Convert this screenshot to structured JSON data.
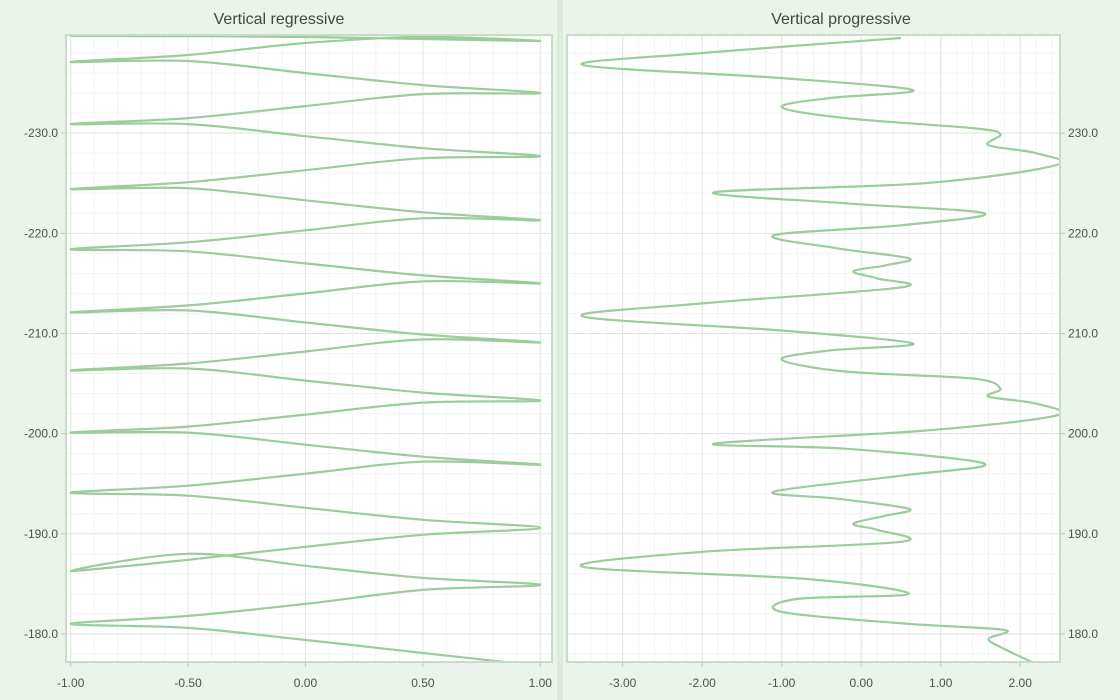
{
  "chart_data": [
    {
      "type": "line",
      "title": "Vertical regressive",
      "orientation": "vertical",
      "y_direction": "regressive",
      "y_axis_side": "left",
      "xlim": [
        -1.02,
        1.05
      ],
      "ylim": [
        -177.2,
        -239.8
      ],
      "x_ticks": [
        -1.0,
        -0.5,
        0.0,
        0.5,
        1.0
      ],
      "x_tick_labels": [
        "-1.00",
        "-0.50",
        "0.00",
        "0.50",
        "1.00"
      ],
      "y_ticks": [
        -180,
        -190,
        -200,
        -210,
        -220,
        -230
      ],
      "y_tick_labels": [
        "-180.0",
        "-190.0",
        "-200.0",
        "-210.0",
        "-220.0",
        "-230.0"
      ],
      "grid": true,
      "line_color": "#9ccc9c",
      "series": [
        {
          "x": [
            0.925,
            0.5,
            0.0,
            -0.5,
            -1.0,
            -0.5,
            0.0,
            0.5,
            1.0,
            0.5,
            0.0,
            -0.5,
            -1.0,
            -0.5,
            0.0,
            0.5,
            1.0,
            0.5,
            0.0,
            -0.5,
            -1.0,
            -0.5,
            0.0,
            0.5,
            1.0,
            0.5,
            0.0,
            -0.5,
            -1.0,
            -0.5,
            0.0,
            0.5,
            1.0,
            0.5,
            0.0,
            -0.5,
            -1.0,
            -0.5,
            0.0,
            0.5,
            1.0,
            0.5,
            0.0,
            -0.5,
            -1.0,
            -0.5,
            0.0,
            0.5,
            1.0,
            0.5,
            0.0,
            -0.5,
            -1.0,
            -0.5,
            0.0,
            0.5,
            1.0,
            0.5,
            0.0,
            -0.5,
            -1.0,
            -0.5,
            0.0,
            0.5,
            1.0,
            0.5,
            0.0,
            -0.5,
            -1.0,
            -0.5,
            0.0,
            0.5,
            1.0,
            0.5,
            0.0,
            -0.5,
            -1.0,
            -0.5,
            0.0,
            0.5,
            1.0,
            0.5,
            0.0,
            -0.5,
            -1.0,
            -0.5,
            0.0,
            0.5,
            1.0,
            0.5,
            0.0,
            -0.5,
            -1.0,
            -0.5,
            0.0,
            0.5,
            1.0,
            0.5,
            0.9
          ],
          "y": [
            -177.0,
            -178.1,
            -179.4,
            -180.6,
            -181.0,
            -181.8,
            -183.0,
            -184.4,
            -184.9,
            -185.6,
            -186.8,
            -188.0,
            -186.3,
            -187.4,
            -188.7,
            -189.9,
            -190.6,
            -191.4,
            -192.6,
            -193.8,
            -194.1,
            -194.8,
            -196.0,
            -197.2,
            -196.9,
            -197.7,
            -198.9,
            -200.1,
            -200.1,
            -200.7,
            -201.9,
            -203.1,
            -203.3,
            -204.1,
            -205.3,
            -206.5,
            -206.3,
            -207.0,
            -208.2,
            -209.4,
            -209.1,
            -209.9,
            -211.1,
            -212.3,
            -212.1,
            -212.8,
            -214.0,
            -215.2,
            -215.0,
            -215.8,
            -217.0,
            -218.2,
            -218.4,
            -219.1,
            -220.3,
            -221.5,
            -221.3,
            -222.1,
            -223.3,
            -224.5,
            -224.4,
            -225.1,
            -226.3,
            -227.5,
            -227.7,
            -228.5,
            -229.7,
            -230.9,
            -230.9,
            -231.5,
            -232.7,
            -233.9,
            -234.0,
            -234.8,
            -236.0,
            -237.2,
            -237.1,
            -237.8,
            -239.0,
            -239.6,
            -239.2,
            -239.4,
            -239.6,
            -239.7,
            -239.7,
            -239.7,
            -239.8,
            -239.8,
            -239.8,
            -239.8,
            -239.8,
            -239.8,
            -239.8,
            -239.8,
            -239.8,
            -239.8,
            -239.8,
            -239.8,
            -239.8
          ]
        }
      ]
    },
    {
      "type": "line",
      "title": "Vertical progressive",
      "orientation": "vertical",
      "y_direction": "progressive",
      "y_axis_side": "right",
      "xlim": [
        -3.7,
        2.5
      ],
      "ylim": [
        177.2,
        239.8
      ],
      "x_ticks": [
        -3.0,
        -2.0,
        -1.0,
        0.0,
        1.0,
        2.0
      ],
      "x_tick_labels": [
        "-3.00",
        "-2.00",
        "-1.00",
        "0.00",
        "1.00",
        "2.00"
      ],
      "y_ticks": [
        180,
        190,
        200,
        210,
        220,
        230
      ],
      "y_tick_labels": [
        "180.0",
        "190.0",
        "200.0",
        "210.0",
        "220.0",
        "230.0"
      ],
      "grid": true,
      "line_color": "#9ccc9c",
      "series": [
        {
          "x": [
            2.2,
            1.8,
            1.6,
            1.8,
            0.6,
            -1.0,
            -0.8,
            0.6,
            -0.7,
            -3.5,
            -2.0,
            0.5,
            0.2,
            -0.1,
            0.3,
            0.6,
            -0.3,
            -1.1,
            0.5,
            1.55,
            -0.2,
            -1.85,
            0.8,
            2.45,
            2.2,
            1.6,
            1.75,
            1.4,
            -0.2,
            -1.0,
            -0.4,
            0.65,
            -1.0,
            -3.5,
            -2.0,
            0.5,
            0.2,
            -0.1,
            0.3,
            0.6,
            -0.3,
            -1.1,
            0.5,
            1.55,
            -0.2,
            -1.85,
            0.8,
            2.45,
            2.2,
            1.6,
            1.75,
            1.4,
            -0.2,
            -1.0,
            -0.4,
            0.65,
            -1.0,
            -3.5,
            -2.0,
            0.5
          ],
          "y": [
            177.0,
            178.5,
            179.5,
            180.4,
            181.0,
            182.2,
            183.5,
            184.0,
            185.5,
            186.7,
            188.2,
            189.2,
            190.4,
            191.0,
            191.8,
            192.5,
            193.5,
            194.2,
            195.8,
            197.0,
            198.5,
            199.0,
            200.3,
            201.8,
            203.0,
            203.7,
            204.5,
            205.5,
            206.2,
            207.4,
            208.3,
            209.0,
            210.3,
            211.7,
            213.0,
            214.6,
            215.5,
            216.2,
            216.8,
            217.5,
            218.5,
            219.8,
            220.8,
            222.0,
            223.0,
            224.1,
            225.0,
            226.8,
            228.0,
            228.8,
            229.9,
            230.5,
            231.5,
            232.6,
            233.5,
            234.3,
            235.5,
            236.8,
            238.0,
            239.5
          ]
        }
      ]
    }
  ]
}
